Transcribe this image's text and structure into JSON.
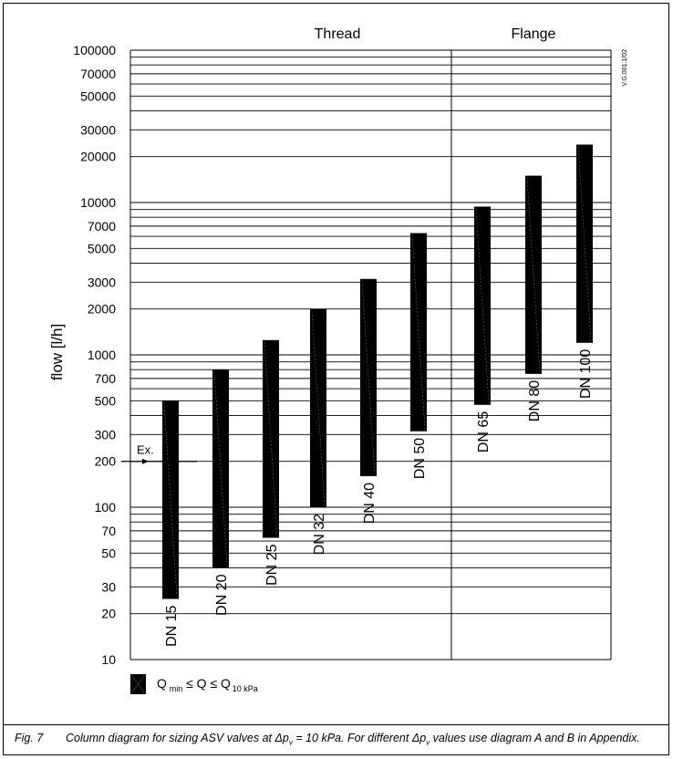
{
  "chart_data": {
    "type": "bar",
    "subtype": "floating-range",
    "scale": "log",
    "ylim": [
      10,
      100000
    ],
    "ylabel": "flow [l/h]",
    "ytick_labels": [
      "100000",
      "70000",
      "50000",
      "30000",
      "20000",
      "10000",
      "7000",
      "5000",
      "3000",
      "2000",
      "1000",
      "700",
      "500",
      "300",
      "200",
      "100",
      "70",
      "50",
      "30",
      "20",
      "10"
    ],
    "ytick_values": [
      100000,
      70000,
      50000,
      30000,
      20000,
      10000,
      7000,
      5000,
      3000,
      2000,
      1000,
      700,
      500,
      300,
      200,
      100,
      70,
      50,
      30,
      20,
      10
    ],
    "grid": true,
    "groups": [
      {
        "label": "Thread",
        "categories": [
          "DN 15",
          "DN 20",
          "DN 25",
          "DN 32",
          "DN 40",
          "DN 50"
        ]
      },
      {
        "label": "Flange",
        "categories": [
          "DN 65",
          "DN 80",
          "DN 100"
        ]
      }
    ],
    "categories": [
      "DN 15",
      "DN 20",
      "DN 25",
      "DN 32",
      "DN 40",
      "DN 50",
      "DN 65",
      "DN 80",
      "DN 100"
    ],
    "ranges": [
      {
        "min": 25,
        "max": 500
      },
      {
        "min": 40,
        "max": 800
      },
      {
        "min": 63,
        "max": 1250
      },
      {
        "min": 100,
        "max": 2000
      },
      {
        "min": 160,
        "max": 3150
      },
      {
        "min": 315,
        "max": 6300
      },
      {
        "min": 470,
        "max": 9400
      },
      {
        "min": 750,
        "max": 15000
      },
      {
        "min": 1200,
        "max": 24000
      }
    ],
    "example": {
      "label": "Ex.",
      "value": 200
    },
    "legend": {
      "text": "Q min ≤ Q ≤ Q 10 kPa",
      "q": "Q",
      "min": "min",
      "le": "≤",
      "sub": "10 kPa"
    },
    "side_label": "V.G.001.1/02",
    "bar_color": "#000000"
  },
  "caption": {
    "fig": "Fig. 7",
    "before": "Column diagram for sizing ASV valves at Δp",
    "sub1": "v",
    "middle": " = 10 kPa. For different Δp",
    "sub2": "v",
    "after": " values use diagram A and B in Appendix."
  }
}
